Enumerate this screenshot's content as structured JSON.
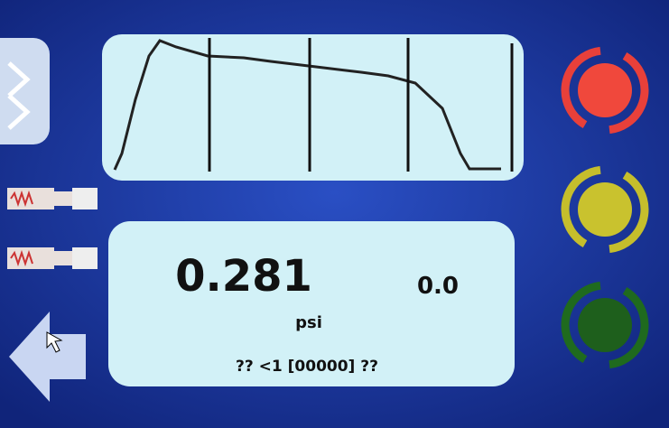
{
  "display": {
    "reading": "0.281",
    "secondary_reading": "0.0",
    "unit": "psi",
    "status": "?? <1 [00000] ??"
  }
}
